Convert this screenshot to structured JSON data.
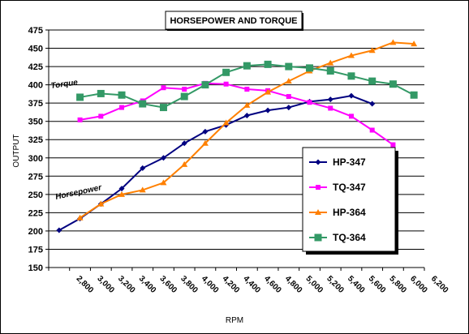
{
  "chart_data": {
    "type": "line",
    "title": "HORSEPOWER AND TORQUE",
    "xlabel": "RPM",
    "ylabel": "OUTPUT",
    "ylim": [
      150,
      475
    ],
    "yticks": [
      150,
      175,
      200,
      225,
      250,
      275,
      300,
      325,
      350,
      375,
      400,
      425,
      450,
      475
    ],
    "xcategories": [
      "2,800",
      "3,000",
      "3,200",
      "3,400",
      "3,600",
      "3,800",
      "4,000",
      "4,200",
      "4,400",
      "4,600",
      "4,800",
      "5,000",
      "5,200",
      "5,400",
      "5,600",
      "5,800",
      "6,000",
      "6,200"
    ],
    "grid": "horizontal",
    "legend_position": "right",
    "annotations": [
      "Torque",
      "Horsepower"
    ],
    "series": [
      {
        "name": "HP-347",
        "color": "#000080",
        "marker": "diamond",
        "points": [
          [
            2700,
            201
          ],
          [
            2900,
            217
          ],
          [
            3100,
            237
          ],
          [
            3300,
            258
          ],
          [
            3500,
            286
          ],
          [
            3700,
            300
          ],
          [
            3900,
            320
          ],
          [
            4100,
            336
          ],
          [
            4300,
            345
          ],
          [
            4500,
            358
          ],
          [
            4700,
            365
          ],
          [
            4900,
            369
          ],
          [
            5100,
            377
          ],
          [
            5300,
            380
          ],
          [
            5500,
            385
          ],
          [
            5700,
            374
          ]
        ]
      },
      {
        "name": "TQ-347",
        "color": "#ff00ff",
        "marker": "square",
        "points": [
          [
            2900,
            352
          ],
          [
            3100,
            357
          ],
          [
            3300,
            369
          ],
          [
            3500,
            378
          ],
          [
            3700,
            396
          ],
          [
            3900,
            394
          ],
          [
            4100,
            402
          ],
          [
            4300,
            401
          ],
          [
            4500,
            394
          ],
          [
            4700,
            392
          ],
          [
            4900,
            384
          ],
          [
            5100,
            376
          ],
          [
            5300,
            368
          ],
          [
            5500,
            357
          ],
          [
            5700,
            338
          ],
          [
            5900,
            318
          ]
        ]
      },
      {
        "name": "HP-364",
        "color": "#ff8000",
        "marker": "triangle",
        "points": [
          [
            2900,
            218
          ],
          [
            3100,
            237
          ],
          [
            3300,
            250
          ],
          [
            3500,
            256
          ],
          [
            3700,
            266
          ],
          [
            3900,
            291
          ],
          [
            4100,
            320
          ],
          [
            4300,
            348
          ],
          [
            4500,
            372
          ],
          [
            4700,
            390
          ],
          [
            4900,
            405
          ],
          [
            5100,
            419
          ],
          [
            5300,
            430
          ],
          [
            5500,
            440
          ],
          [
            5700,
            447
          ],
          [
            5900,
            458
          ],
          [
            6100,
            456
          ]
        ]
      },
      {
        "name": "TQ-364",
        "color": "#339966",
        "marker": "square",
        "points": [
          [
            2900,
            383
          ],
          [
            3100,
            388
          ],
          [
            3300,
            386
          ],
          [
            3500,
            374
          ],
          [
            3700,
            369
          ],
          [
            3900,
            384
          ],
          [
            4100,
            400
          ],
          [
            4300,
            417
          ],
          [
            4500,
            426
          ],
          [
            4700,
            428
          ],
          [
            4900,
            425
          ],
          [
            5100,
            423
          ],
          [
            5300,
            419
          ],
          [
            5500,
            412
          ],
          [
            5700,
            405
          ],
          [
            5900,
            401
          ],
          [
            6100,
            386
          ]
        ]
      }
    ]
  }
}
